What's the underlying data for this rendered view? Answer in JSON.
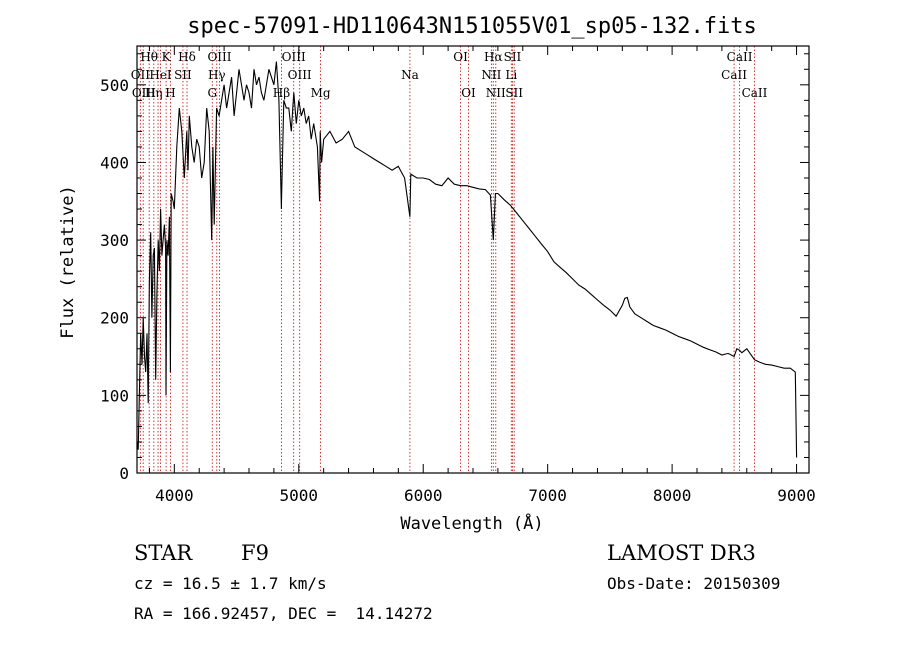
{
  "chart_data": {
    "type": "line",
    "title": "spec-57091-HD110643N151055V01_sp05-132.fits",
    "xlabel": "Wavelength (Å)",
    "ylabel": "Flux (relative)",
    "xlim": [
      3700,
      9100
    ],
    "ylim": [
      0,
      550
    ],
    "xticks": [
      4000,
      5000,
      6000,
      7000,
      8000,
      9000
    ],
    "yticks": [
      0,
      100,
      200,
      300,
      400,
      500
    ],
    "grid": false,
    "series": [
      {
        "name": "flux",
        "x": [
          3700,
          3710,
          3720,
          3730,
          3740,
          3750,
          3760,
          3770,
          3780,
          3790,
          3800,
          3810,
          3820,
          3830,
          3840,
          3850,
          3860,
          3870,
          3880,
          3890,
          3900,
          3910,
          3920,
          3930,
          3933,
          3940,
          3950,
          3960,
          3968,
          3975,
          3990,
          4000,
          4020,
          4040,
          4060,
          4080,
          4100,
          4110,
          4120,
          4140,
          4160,
          4180,
          4200,
          4220,
          4240,
          4260,
          4280,
          4300,
          4310,
          4320,
          4340,
          4360,
          4380,
          4400,
          4420,
          4440,
          4460,
          4480,
          4500,
          4520,
          4540,
          4560,
          4580,
          4600,
          4620,
          4640,
          4660,
          4680,
          4700,
          4720,
          4740,
          4760,
          4780,
          4800,
          4820,
          4840,
          4860,
          4861,
          4880,
          4900,
          4920,
          4940,
          4960,
          4980,
          5000,
          5020,
          5040,
          5060,
          5080,
          5100,
          5120,
          5150,
          5167,
          5172,
          5183,
          5200,
          5250,
          5300,
          5350,
          5400,
          5450,
          5500,
          5550,
          5600,
          5650,
          5700,
          5750,
          5800,
          5850,
          5893,
          5900,
          5950,
          6000,
          6050,
          6100,
          6150,
          6200,
          6250,
          6300,
          6350,
          6400,
          6450,
          6500,
          6540,
          6563,
          6580,
          6600,
          6650,
          6700,
          6750,
          6800,
          6850,
          6900,
          6950,
          7000,
          7050,
          7100,
          7150,
          7200,
          7250,
          7300,
          7350,
          7400,
          7450,
          7500,
          7550,
          7600,
          7620,
          7640,
          7660,
          7700,
          7750,
          7800,
          7850,
          7900,
          7950,
          8000,
          8050,
          8100,
          8150,
          8200,
          8250,
          8300,
          8350,
          8400,
          8450,
          8498,
          8520,
          8542,
          8560,
          8600,
          8662,
          8700,
          8750,
          8800,
          8850,
          8900,
          8950,
          8990,
          9000
        ],
        "values": [
          40,
          30,
          110,
          180,
          140,
          200,
          150,
          130,
          180,
          90,
          250,
          310,
          200,
          280,
          290,
          120,
          230,
          300,
          260,
          340,
          280,
          300,
          320,
          290,
          100,
          300,
          280,
          330,
          130,
          360,
          350,
          340,
          420,
          470,
          440,
          380,
          440,
          390,
          460,
          420,
          400,
          430,
          420,
          380,
          400,
          470,
          440,
          300,
          420,
          320,
          470,
          460,
          480,
          500,
          470,
          490,
          510,
          460,
          490,
          520,
          500,
          480,
          500,
          490,
          470,
          520,
          500,
          510,
          490,
          480,
          500,
          520,
          510,
          500,
          530,
          480,
          340,
          350,
          480,
          470,
          470,
          440,
          490,
          450,
          480,
          460,
          470,
          450,
          460,
          430,
          450,
          420,
          350,
          440,
          400,
          430,
          440,
          425,
          430,
          440,
          420,
          415,
          410,
          405,
          400,
          395,
          390,
          395,
          380,
          330,
          385,
          380,
          380,
          378,
          372,
          370,
          380,
          372,
          370,
          370,
          368,
          366,
          365,
          358,
          300,
          360,
          360,
          352,
          345,
          335,
          325,
          315,
          305,
          295,
          285,
          272,
          265,
          258,
          250,
          242,
          237,
          230,
          223,
          216,
          210,
          202,
          216,
          225,
          226,
          214,
          205,
          200,
          195,
          190,
          187,
          184,
          180,
          176,
          173,
          170,
          166,
          162,
          159,
          156,
          152,
          154,
          150,
          160,
          158,
          155,
          160,
          146,
          143,
          140,
          139,
          137,
          135,
          135,
          130,
          20
        ]
      }
    ],
    "annotations": [
      {
        "label": "Hθ",
        "x": 3798,
        "row": 0
      },
      {
        "label": "OII",
        "x": 3727,
        "row": 1
      },
      {
        "label": "OIII",
        "x": 3755,
        "row": 2
      },
      {
        "label": "Hη",
        "x": 3835,
        "row": 2
      },
      {
        "label": "HeI",
        "x": 3889,
        "row": 1
      },
      {
        "label": "K",
        "x": 3934,
        "row": 0
      },
      {
        "label": "H",
        "x": 3969,
        "row": 2
      },
      {
        "label": "SII",
        "x": 4069,
        "row": 1
      },
      {
        "label": "Hδ",
        "x": 4102,
        "row": 0
      },
      {
        "label": "OIII",
        "x": 4363,
        "row": 0
      },
      {
        "label": "Hγ",
        "x": 4341,
        "row": 1
      },
      {
        "label": "G",
        "x": 4305,
        "row": 2
      },
      {
        "label": "OIII",
        "x": 4959,
        "row": 0
      },
      {
        "label": "OIII",
        "x": 5007,
        "row": 1
      },
      {
        "label": "Hβ",
        "x": 4861,
        "row": 2
      },
      {
        "label": "Mg",
        "x": 5175,
        "row": 2
      },
      {
        "label": "Na",
        "x": 5893,
        "row": 1
      },
      {
        "label": "OI",
        "x": 6300,
        "row": 0
      },
      {
        "label": "OI",
        "x": 6364,
        "row": 2
      },
      {
        "label": "Hα",
        "x": 6563,
        "row": 0
      },
      {
        "label": "NII",
        "x": 6548,
        "row": 1
      },
      {
        "label": "NII",
        "x": 6583,
        "row": 2
      },
      {
        "label": "SII",
        "x": 6717,
        "row": 0
      },
      {
        "label": "Li",
        "x": 6708,
        "row": 1
      },
      {
        "label": "SII",
        "x": 6731,
        "row": 2
      },
      {
        "label": "CaII",
        "x": 8542,
        "row": 0
      },
      {
        "label": "CaII",
        "x": 8498,
        "row": 1
      },
      {
        "label": "CaII",
        "x": 8662,
        "row": 2
      }
    ],
    "line_markers": [
      3727,
      3750,
      3798,
      3835,
      3869,
      3889,
      3934,
      3969,
      4069,
      4102,
      4305,
      4341,
      4363,
      4861,
      4959,
      5007,
      5175,
      5893,
      6300,
      6364,
      6548,
      6563,
      6583,
      6708,
      6717,
      6731,
      8498,
      8542,
      8662
    ],
    "colors": {
      "line": "#000000",
      "markers": "#cc2222",
      "axes": "#000000"
    }
  },
  "info": {
    "class": "STAR",
    "subclass": "F9",
    "survey": "LAMOST DR3",
    "cz": "cz = 16.5 ± 1.7 km/s",
    "obs_date": "Obs-Date: 20150309",
    "radec": "RA = 166.92457, DEC =  14.14272"
  }
}
